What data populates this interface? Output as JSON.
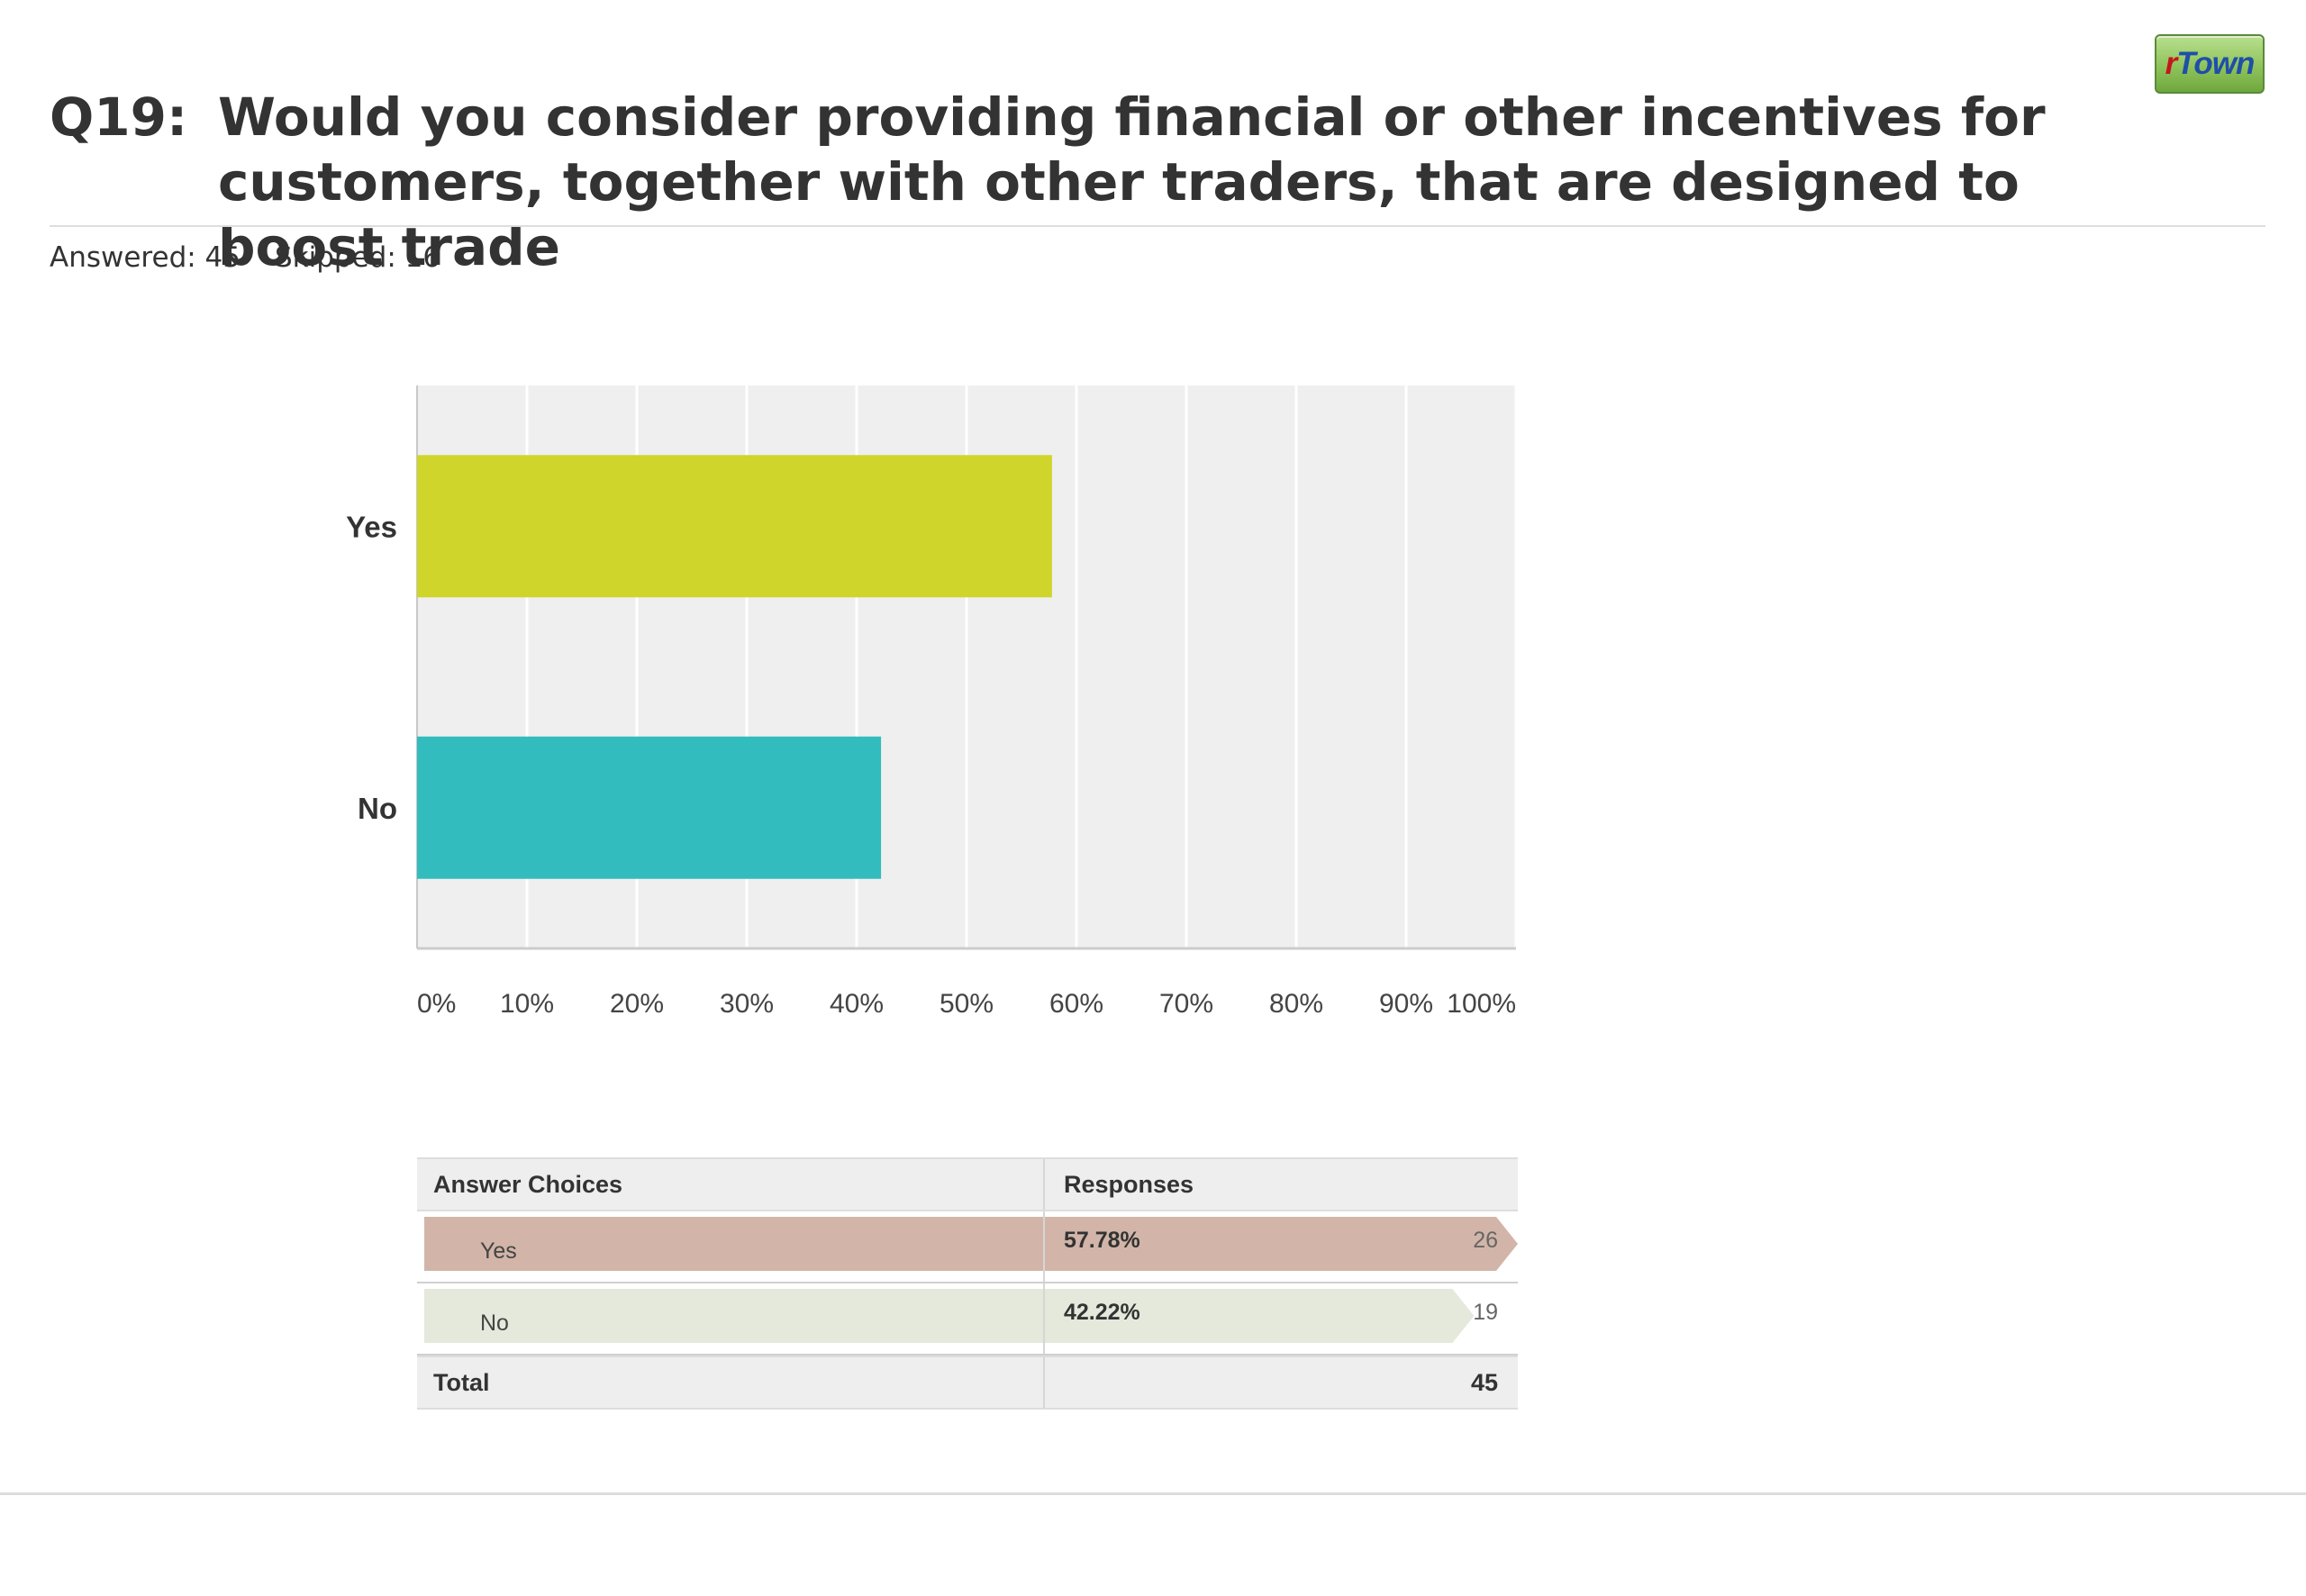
{
  "logo": {
    "prefix": "r",
    "suffix": "Town"
  },
  "question": {
    "number": "Q19:",
    "text": "Would you consider providing financial or other incentives for customers, together with other traders, that are designed to boost trade"
  },
  "stats": {
    "answered_label": "Answered: 45",
    "skipped_label": "Skipped: 16"
  },
  "chart_data": {
    "type": "bar",
    "orientation": "horizontal",
    "categories": [
      "Yes",
      "No"
    ],
    "values": [
      57.78,
      42.22
    ],
    "colors": [
      "#cfd52a",
      "#33bcbe"
    ],
    "xlim": [
      0,
      100
    ],
    "x_ticks": [
      "0%",
      "10%",
      "20%",
      "30%",
      "40%",
      "50%",
      "60%",
      "70%",
      "80%",
      "90%",
      "100%"
    ],
    "grid": true,
    "background": "#efefef"
  },
  "table": {
    "headers": [
      "Answer Choices",
      "Responses"
    ],
    "rows": [
      {
        "choice": "Yes",
        "percent": "57.78%",
        "count": "26",
        "bar_color": "#d2b5a8",
        "bar_value": 1.0
      },
      {
        "choice": "No",
        "percent": "42.22%",
        "count": "19",
        "bar_color": "#e4e9dc",
        "bar_value": 0.96
      }
    ],
    "total_label": "Total",
    "total_value": "45"
  }
}
